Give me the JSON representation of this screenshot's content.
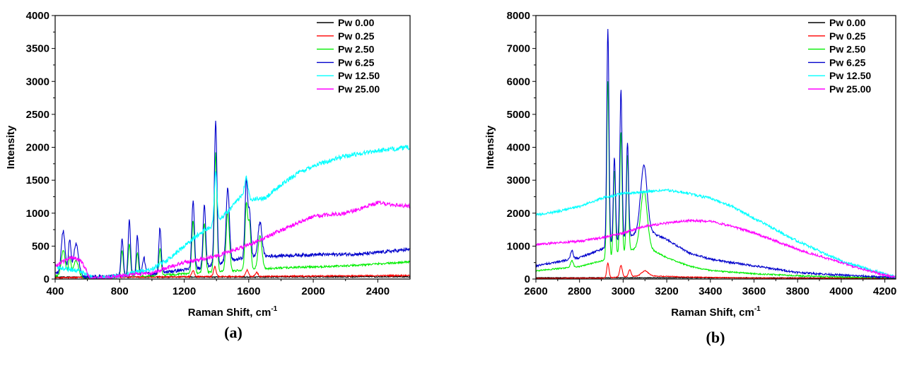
{
  "colors": {
    "Pw 0.00": "#000000",
    "Pw 0.25": "#ff0000",
    "Pw 2.50": "#00ee00",
    "Pw 6.25": "#0000cc",
    "Pw 12.50": "#00ffff",
    "Pw 25.00": "#ff00ff"
  },
  "chart_data": [
    {
      "type": "line",
      "panel_label": "(a)",
      "xlabel_main": "Raman Shift, cm",
      "xlabel_sup": "-1",
      "ylabel": "Intensity",
      "xlim": [
        400,
        2600
      ],
      "ylim": [
        0,
        4000
      ],
      "xticks": [
        400,
        800,
        1200,
        1600,
        2000,
        2400
      ],
      "yticks": [
        0,
        500,
        1000,
        1500,
        2000,
        2500,
        3000,
        3500,
        4000
      ],
      "grid": false,
      "legend_position": "top-right",
      "series": [
        {
          "name": "Pw 0.00",
          "base": [
            [
              400,
              30
            ],
            [
              1000,
              30
            ],
            [
              1600,
              30
            ],
            [
              2600,
              35
            ]
          ],
          "peaks": [],
          "noise": 8
        },
        {
          "name": "Pw 0.25",
          "base": [
            [
              400,
              20
            ],
            [
              600,
              25
            ],
            [
              1200,
              35
            ],
            [
              2000,
              45
            ],
            [
              2600,
              55
            ]
          ],
          "peaks": [
            [
              1255,
              90,
              8
            ],
            [
              1390,
              150,
              8
            ],
            [
              1590,
              100,
              8
            ],
            [
              1650,
              60,
              8
            ]
          ],
          "noise": 10
        },
        {
          "name": "Pw 2.50",
          "base": [
            [
              400,
              50
            ],
            [
              600,
              20
            ],
            [
              1000,
              50
            ],
            [
              1400,
              110
            ],
            [
              1800,
              170
            ],
            [
              2200,
              200
            ],
            [
              2600,
              260
            ]
          ],
          "peaks": [
            [
              450,
              400,
              12
            ],
            [
              490,
              300,
              8
            ],
            [
              530,
              250,
              15
            ],
            [
              815,
              400,
              7
            ],
            [
              860,
              500,
              7
            ],
            [
              910,
              350,
              7
            ],
            [
              1050,
              400,
              7
            ],
            [
              1255,
              800,
              8
            ],
            [
              1325,
              750,
              8
            ],
            [
              1395,
              1800,
              8
            ],
            [
              1470,
              900,
              10
            ],
            [
              1585,
              1000,
              8
            ],
            [
              1605,
              700,
              8
            ],
            [
              1670,
              500,
              12
            ]
          ],
          "noise": 15
        },
        {
          "name": "Pw 6.25",
          "base": [
            [
              400,
              90
            ],
            [
              600,
              30
            ],
            [
              1000,
              80
            ],
            [
              1300,
              170
            ],
            [
              1600,
              340
            ],
            [
              2000,
              370
            ],
            [
              2300,
              380
            ],
            [
              2600,
              450
            ]
          ],
          "peaks": [
            [
              450,
              650,
              12
            ],
            [
              490,
              520,
              8
            ],
            [
              530,
              480,
              15
            ],
            [
              815,
              570,
              7
            ],
            [
              860,
              830,
              7
            ],
            [
              910,
              590,
              7
            ],
            [
              950,
              250,
              8
            ],
            [
              1050,
              690,
              7
            ],
            [
              1255,
              1030,
              8
            ],
            [
              1325,
              960,
              8
            ],
            [
              1395,
              2170,
              8
            ],
            [
              1470,
              1120,
              10
            ],
            [
              1585,
              1150,
              8
            ],
            [
              1605,
              680,
              8
            ],
            [
              1670,
              520,
              12
            ]
          ],
          "noise": 25
        },
        {
          "name": "Pw 12.50",
          "base": [
            [
              400,
              180
            ],
            [
              560,
              120
            ],
            [
              650,
              0
            ],
            [
              800,
              50
            ],
            [
              1000,
              150
            ],
            [
              1100,
              300
            ],
            [
              1200,
              500
            ],
            [
              1300,
              700
            ],
            [
              1400,
              850
            ],
            [
              1500,
              1100
            ],
            [
              1560,
              1290
            ],
            [
              1600,
              1220
            ],
            [
              1700,
              1220
            ],
            [
              1800,
              1430
            ],
            [
              1900,
              1600
            ],
            [
              2000,
              1720
            ],
            [
              2200,
              1870
            ],
            [
              2400,
              1950
            ],
            [
              2600,
              2000
            ]
          ],
          "peaks": [
            [
              1395,
              800,
              8
            ],
            [
              1585,
              300,
              10
            ]
          ],
          "noise": 35
        },
        {
          "name": "Pw 25.00",
          "base": [
            [
              400,
              200
            ],
            [
              500,
              330
            ],
            [
              560,
              280
            ],
            [
              620,
              0
            ],
            [
              1000,
              100
            ],
            [
              1200,
              250
            ],
            [
              1400,
              350
            ],
            [
              1600,
              520
            ],
            [
              1800,
              740
            ],
            [
              2000,
              950
            ],
            [
              2200,
              1000
            ],
            [
              2400,
              1160
            ],
            [
              2600,
              1100
            ]
          ],
          "peaks": [],
          "noise": 30
        }
      ]
    },
    {
      "type": "line",
      "panel_label": "(b)",
      "xlabel_main": "Raman Shift, cm",
      "xlabel_sup": "-1",
      "ylabel": "Intensity",
      "xlim": [
        2600,
        4250
      ],
      "ylim": [
        0,
        8000
      ],
      "xticks": [
        2600,
        2800,
        3000,
        3200,
        3400,
        3600,
        3800,
        4000,
        4200
      ],
      "yticks": [
        0,
        1000,
        2000,
        3000,
        4000,
        5000,
        6000,
        7000,
        8000
      ],
      "grid": false,
      "legend_position": "top-right",
      "series": [
        {
          "name": "Pw 0.00",
          "base": [
            [
              2600,
              40
            ],
            [
              3400,
              40
            ],
            [
              4250,
              30
            ]
          ],
          "peaks": [],
          "noise": 10
        },
        {
          "name": "Pw 0.25",
          "base": [
            [
              2600,
              20
            ],
            [
              2900,
              30
            ],
            [
              3100,
              100
            ],
            [
              3300,
              60
            ],
            [
              3600,
              30
            ],
            [
              4250,
              20
            ]
          ],
          "peaks": [
            [
              2930,
              450,
              5
            ],
            [
              2990,
              350,
              6
            ],
            [
              3030,
              200,
              6
            ],
            [
              3100,
              150,
              15
            ]
          ],
          "noise": 12
        },
        {
          "name": "Pw 2.50",
          "base": [
            [
              2600,
              250
            ],
            [
              2800,
              380
            ],
            [
              2900,
              550
            ],
            [
              3000,
              800
            ],
            [
              3050,
              900
            ],
            [
              3100,
              1000
            ],
            [
              3200,
              650
            ],
            [
              3300,
              400
            ],
            [
              3400,
              260
            ],
            [
              3600,
              160
            ],
            [
              3800,
              100
            ],
            [
              4000,
              60
            ],
            [
              4250,
              40
            ]
          ],
          "peaks": [
            [
              2765,
              200,
              6
            ],
            [
              2930,
              5400,
              5
            ],
            [
              2960,
              2600,
              5
            ],
            [
              2990,
              3700,
              5
            ],
            [
              3020,
              2900,
              5
            ],
            [
              3095,
              1700,
              15
            ]
          ],
          "noise": 20
        },
        {
          "name": "Pw 6.25",
          "base": [
            [
              2600,
              400
            ],
            [
              2800,
              650
            ],
            [
              2900,
              900
            ],
            [
              3000,
              1200
            ],
            [
              3100,
              1500
            ],
            [
              3200,
              1200
            ],
            [
              3300,
              800
            ],
            [
              3400,
              600
            ],
            [
              3600,
              400
            ],
            [
              3800,
              200
            ],
            [
              4000,
              120
            ],
            [
              4250,
              40
            ]
          ],
          "peaks": [
            [
              2765,
              250,
              6
            ],
            [
              2930,
              6600,
              5
            ],
            [
              2960,
              2600,
              5
            ],
            [
              2990,
              4600,
              5
            ],
            [
              3020,
              2900,
              5
            ],
            [
              3095,
              1950,
              15
            ]
          ],
          "noise": 30
        },
        {
          "name": "Pw 12.50",
          "base": [
            [
              2600,
              1950
            ],
            [
              2700,
              2050
            ],
            [
              2800,
              2200
            ],
            [
              2900,
              2450
            ],
            [
              3000,
              2600
            ],
            [
              3100,
              2650
            ],
            [
              3200,
              2700
            ],
            [
              3300,
              2600
            ],
            [
              3400,
              2450
            ],
            [
              3500,
              2200
            ],
            [
              3600,
              1850
            ],
            [
              3700,
              1500
            ],
            [
              3800,
              1150
            ],
            [
              3900,
              850
            ],
            [
              4000,
              550
            ],
            [
              4100,
              350
            ],
            [
              4200,
              150
            ],
            [
              4250,
              50
            ]
          ],
          "peaks": [],
          "noise": 40
        },
        {
          "name": "Pw 25.00",
          "base": [
            [
              2600,
              1050
            ],
            [
              2800,
              1150
            ],
            [
              2900,
              1250
            ],
            [
              3000,
              1400
            ],
            [
              3100,
              1600
            ],
            [
              3200,
              1700
            ],
            [
              3300,
              1780
            ],
            [
              3400,
              1750
            ],
            [
              3500,
              1600
            ],
            [
              3600,
              1400
            ],
            [
              3700,
              1150
            ],
            [
              3800,
              900
            ],
            [
              3900,
              700
            ],
            [
              4000,
              500
            ],
            [
              4100,
              300
            ],
            [
              4200,
              120
            ],
            [
              4250,
              50
            ]
          ],
          "peaks": [],
          "noise": 35
        }
      ]
    }
  ]
}
